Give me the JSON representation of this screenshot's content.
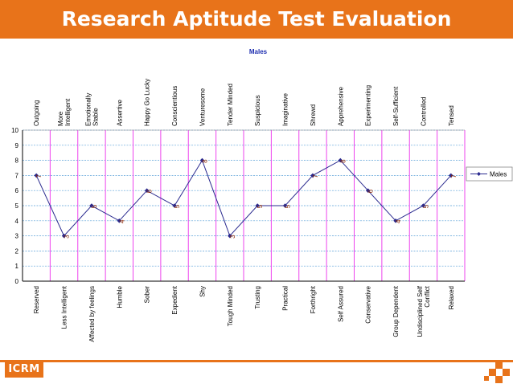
{
  "slide": {
    "title": "Research Aptitude Test Evaluation",
    "logo_text": "ICRM",
    "accent_color": "#e8731a"
  },
  "chart_data": {
    "type": "line",
    "title": "Males",
    "top_labels": [
      "Outgoing",
      "More Intelligent",
      "Emotionally Stable",
      "Assertive",
      "Happy Go Lucky",
      "Conscientious",
      "Venturesome",
      "Tender Minded",
      "Suspicious",
      "Imaginative",
      "Shrewd",
      "Apprehensive",
      "Experimenting",
      "Self-Sufficient",
      "Controlled",
      "Tensed"
    ],
    "categories": [
      "Reserved",
      "Less Intelligent",
      "Affected by feelings",
      "Humble",
      "Sober",
      "Expedient",
      "Shy",
      "Tough Minded",
      "Trusting",
      "Practical",
      "Forthright",
      "Self Assured",
      "Conservative",
      "Group Dependent",
      "Undisciplined Self Conflict",
      "Relaxed"
    ],
    "series": [
      {
        "name": "Males",
        "values": [
          7,
          3,
          5,
          4,
          6,
          5,
          8,
          3,
          5,
          5,
          7,
          8,
          6,
          4,
          5,
          7
        ]
      }
    ],
    "yticks": [
      "0",
      "1",
      "2",
      "3",
      "4",
      "5",
      "6",
      "7",
      "8",
      "9",
      "10"
    ],
    "ylim": [
      0,
      10
    ],
    "grid": true,
    "legend_position": "right",
    "series_color": "#2a2a8f",
    "label_color": "#8b2500",
    "vertical_grid_color": "#ee44ee",
    "horizontal_grid_color": "#5aa0d8"
  }
}
